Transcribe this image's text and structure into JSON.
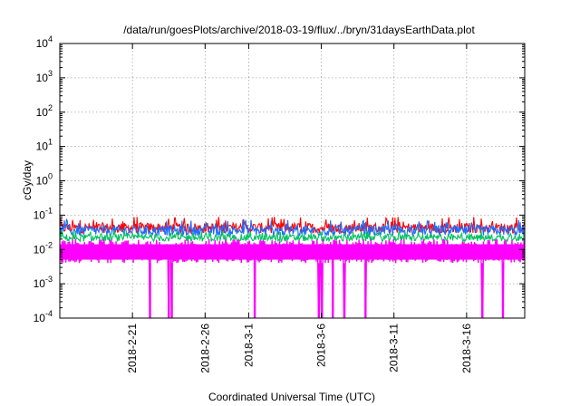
{
  "chart_data": {
    "type": "line",
    "title": "/data/run/goesPlots/archive/2018-03-19/flux/../bryn/31daysEarthData.plot",
    "xlabel": "Coordinated Universal Time (UTC)",
    "ylabel": "cGy/day",
    "x_range": [
      "2018-02-16",
      "2018-03-20"
    ],
    "x_ticks": [
      "2018-2-21",
      "2018-2-26",
      "2018-3-1",
      "2018-3-6",
      "2018-3-11",
      "2018-3-16"
    ],
    "x_tick_dates": [
      "2018-02-21",
      "2018-02-26",
      "2018-03-01",
      "2018-03-06",
      "2018-03-11",
      "2018-03-16"
    ],
    "y_scale": "log",
    "ylim": [
      0.0001,
      10000
    ],
    "y_ticks": [
      {
        "value": 0.0001,
        "base": "10",
        "exp": "-4"
      },
      {
        "value": 0.001,
        "base": "10",
        "exp": "-3"
      },
      {
        "value": 0.01,
        "base": "10",
        "exp": "-2"
      },
      {
        "value": 0.1,
        "base": "10",
        "exp": "-1"
      },
      {
        "value": 1,
        "base": "10",
        "exp": "0"
      },
      {
        "value": 10,
        "base": "10",
        "exp": "1"
      },
      {
        "value": 100,
        "base": "10",
        "exp": "2"
      },
      {
        "value": 1000,
        "base": "10",
        "exp": "3"
      },
      {
        "value": 10000,
        "base": "10",
        "exp": "4"
      }
    ],
    "grid": true,
    "series": [
      {
        "color": "#ff0000",
        "low": 0.03,
        "high": 0.06,
        "peak": 0.09
      },
      {
        "color": "#1e6bff",
        "low": 0.025,
        "high": 0.05,
        "peak": 0.075
      },
      {
        "color": "#00c060",
        "low": 0.017,
        "high": 0.028,
        "peak": 0.035
      },
      {
        "color": "#ff00ff",
        "low": 0.004,
        "high": 0.02,
        "peak": 0.03
      }
    ],
    "magenta_dropouts": [
      "2018-02-22T05:00",
      "2018-02-23T12:00",
      "2018-02-23T17:00",
      "2018-03-01T10:00",
      "2018-03-05T20:00",
      "2018-03-06T01:00",
      "2018-03-06T19:00",
      "2018-03-07T14:00",
      "2018-03-09T01:00",
      "2018-03-17T02:00",
      "2018-03-18T12:00"
    ]
  }
}
